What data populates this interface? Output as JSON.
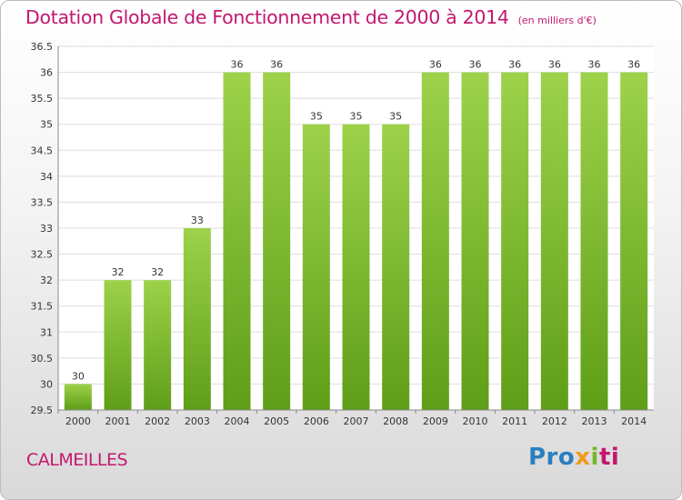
{
  "title": "Dotation Globale de Fonctionnement de 2000 à 2014",
  "unit": "(en milliers d'€)",
  "commune": "CALMEILLES",
  "logo": {
    "p1": "Pro",
    "p2": "x",
    "p3": "i",
    "p4": "ti",
    "colors": [
      "#2a7fc0",
      "#f29a1d",
      "#76b82a",
      "#c4176f"
    ]
  },
  "chart_data": {
    "type": "bar",
    "title": "Dotation Globale de Fonctionnement de 2000 à 2014",
    "ylabel": "(en milliers d'€)",
    "categories": [
      "2000",
      "2001",
      "2002",
      "2003",
      "2004",
      "2005",
      "2006",
      "2007",
      "2008",
      "2009",
      "2010",
      "2011",
      "2012",
      "2013",
      "2014"
    ],
    "values": [
      30,
      32,
      32,
      33,
      36,
      36,
      35,
      35,
      35,
      36,
      36,
      36,
      36,
      36,
      36
    ],
    "ylim": [
      29.5,
      36.5
    ],
    "yticks": [
      "29.5",
      "30",
      "30.5",
      "31",
      "31.5",
      "32",
      "32.5",
      "33",
      "33.5",
      "34",
      "34.5",
      "35",
      "35.5",
      "36",
      "36.5"
    ],
    "grid": true,
    "bar_color": "#7cbf2f",
    "grid_color": "#dddddd"
  }
}
